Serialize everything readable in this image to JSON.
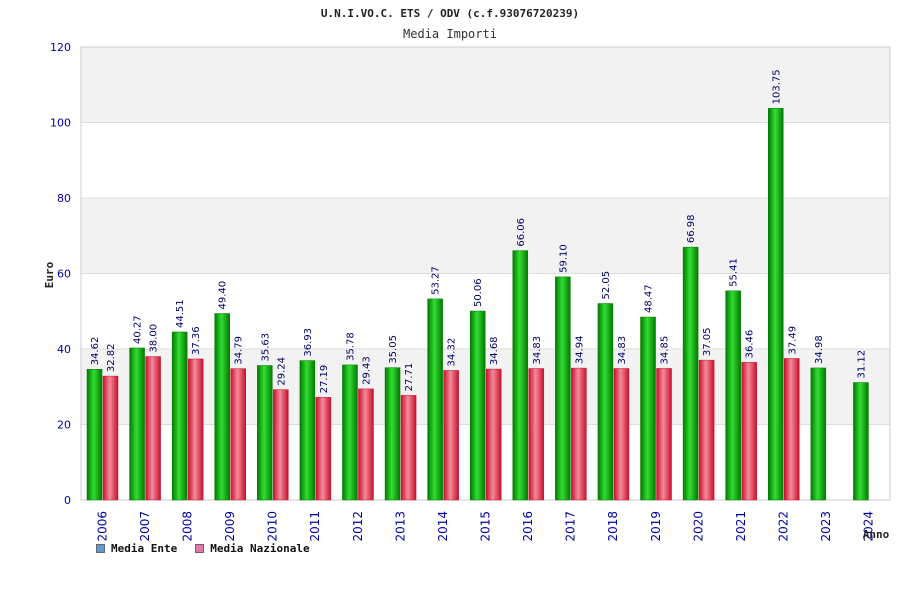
{
  "chart_data": {
    "type": "bar",
    "title": "U.N.I.VO.C. ETS / ODV (c.f.93076720239)",
    "subtitle": "Media Importi",
    "ylabel": "Euro",
    "xlabel": "Anno",
    "ylim": [
      0,
      120
    ],
    "yticks": [
      "0",
      "20",
      "40",
      "60",
      "80",
      "100",
      "120"
    ],
    "grid": true,
    "categories": [
      "2006",
      "2007",
      "2008",
      "2009",
      "2010",
      "2011",
      "2012",
      "2013",
      "2014",
      "2015",
      "2016",
      "2017",
      "2018",
      "2019",
      "2020",
      "2021",
      "2022",
      "2023",
      "2024"
    ],
    "series": [
      {
        "name": "Media Ente",
        "values": [
          34.62,
          40.27,
          44.51,
          49.4,
          35.63,
          36.93,
          35.78,
          35.05,
          53.27,
          50.06,
          66.06,
          59.1,
          52.05,
          48.47,
          66.98,
          55.41,
          103.75,
          34.98,
          31.12
        ],
        "labels": [
          "34.62",
          "40.27",
          "44.51",
          "49.40",
          "35.63",
          "36.93",
          "35.78",
          "35.05",
          "53.27",
          "50.06",
          "66.06",
          "59.10",
          "52.05",
          "48.47",
          "66.98",
          "55.41",
          "103.75",
          "34.98",
          "31.12"
        ]
      },
      {
        "name": "Media Nazionale",
        "values": [
          32.82,
          38.0,
          37.36,
          34.79,
          29.24,
          27.19,
          29.43,
          27.71,
          34.32,
          34.68,
          34.83,
          34.94,
          34.83,
          34.85,
          37.05,
          36.46,
          37.49,
          null,
          null
        ],
        "labels": [
          "32.82",
          "38.00",
          "37.36",
          "34.79",
          "29.24",
          "27.19",
          "29.43",
          "27.71",
          "34.32",
          "34.68",
          "34.83",
          "34.94",
          "34.83",
          "34.85",
          "37.05",
          "36.46",
          "37.49",
          null,
          null
        ]
      }
    ],
    "legend_position": "bottom-left"
  },
  "legend": {
    "ente_label": "Media Ente",
    "nazionale_label": "Media Nazionale",
    "ente_swatch": "#5b9bd5",
    "nazionale_swatch": "#e377a8"
  },
  "colors": {
    "ente_dark": "#007a00",
    "ente_light": "#33dd33",
    "naz_dark": "#c8102e",
    "naz_light": "#f48a9a",
    "band": "#f2f2f2"
  }
}
